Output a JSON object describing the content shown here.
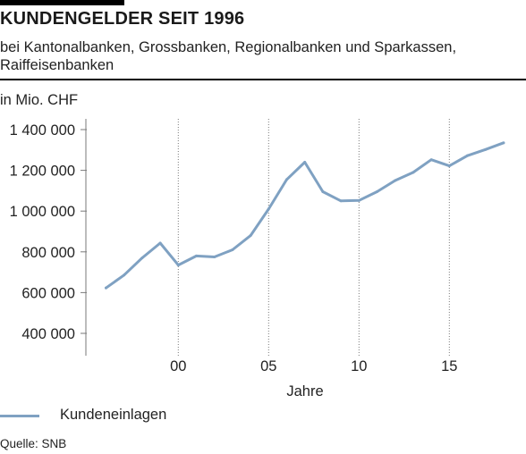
{
  "title": "KUNDENGELDER SEIT 1996",
  "subtitle": "bei Kantonalbanken, Grossbanken, Regionalbanken und Sparkassen, Raiffeisenbanken",
  "unit_label": "in Mio. CHF",
  "source": "Quelle: SNB",
  "colors": {
    "series": "#7fa1c2",
    "grid": "#7a7a7a",
    "accent_bar": "#000000"
  },
  "chart_data": {
    "type": "line",
    "title": "KUNDENGELDER SEIT 1996",
    "xlabel": "Jahre",
    "ylabel": "in Mio. CHF",
    "xlim": [
      1995.2,
      2019.2
    ],
    "ylim": [
      400000,
      1400000
    ],
    "x_ticks": [
      2000,
      2005,
      2010,
      2015
    ],
    "x_tick_labels": [
      "00",
      "05",
      "10",
      "15"
    ],
    "y_ticks": [
      400000,
      600000,
      800000,
      1000000,
      1200000,
      1400000
    ],
    "y_tick_labels": [
      "400 000",
      "600 000",
      "800 000",
      "1 000 000",
      "1 200 000",
      "1 400 000"
    ],
    "grid": "vertical at x ticks",
    "legend_position": "bottom-left",
    "series": [
      {
        "name": "Kundeneinlagen",
        "x": [
          1996,
          1997,
          1998,
          1999,
          2000,
          2001,
          2002,
          2003,
          2004,
          2005,
          2006,
          2007,
          2008,
          2009,
          2010,
          2011,
          2012,
          2013,
          2014,
          2015,
          2016,
          2017,
          2018
        ],
        "values": [
          623000,
          686000,
          770000,
          843000,
          735000,
          780000,
          775000,
          810000,
          880000,
          1010000,
          1155000,
          1240000,
          1095000,
          1050000,
          1052000,
          1095000,
          1150000,
          1190000,
          1252000,
          1222000,
          1272000,
          1302000,
          1335000
        ]
      }
    ]
  }
}
